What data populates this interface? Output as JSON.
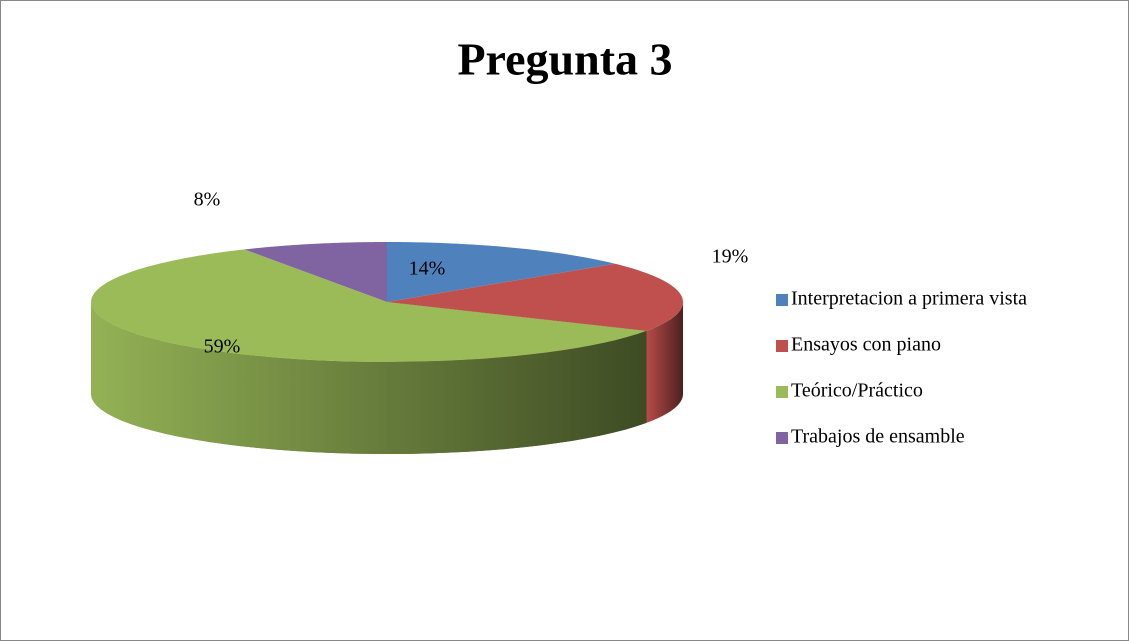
{
  "chart_data": {
    "type": "pie",
    "title": "Pregunta 3",
    "categories": [
      "Interpretacion a primera vista",
      "Ensayos con piano",
      "Teórico/Práctico",
      "Trabajos de ensamble"
    ],
    "values": [
      14,
      19,
      59,
      8
    ],
    "value_labels": [
      "14%",
      "19%",
      "59%",
      "8%"
    ],
    "colors": [
      "#4f81bd",
      "#c0504d",
      "#9bbb59",
      "#8064a2"
    ],
    "legend": "right"
  }
}
